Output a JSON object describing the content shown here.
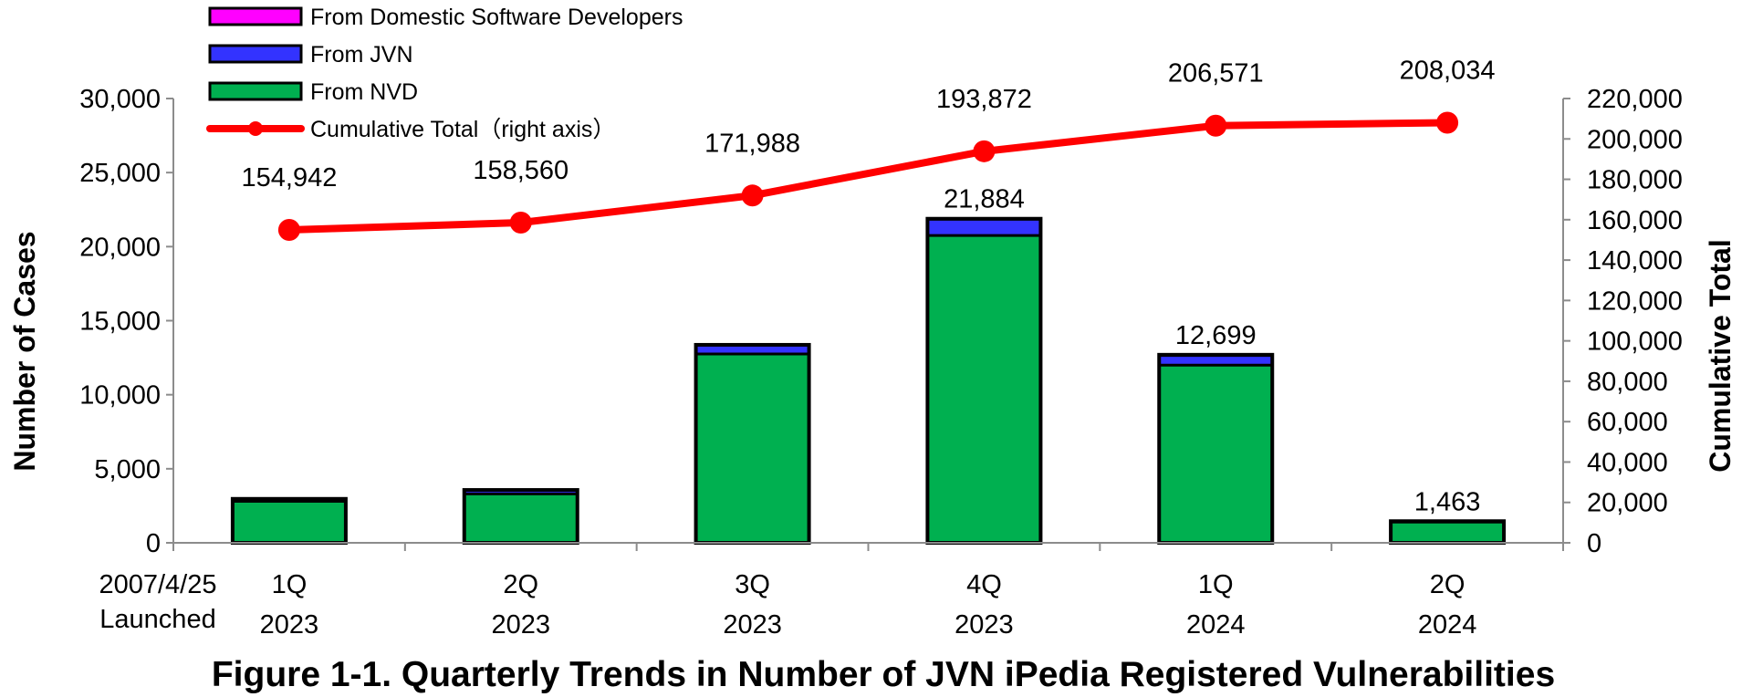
{
  "chart_data": {
    "type": "bar",
    "title": "Figure 1-1. Quarterly Trends in Number of JVN iPedia Registered Vulnerabilities",
    "ylabel": "Number of Cases",
    "y2label": "Cumulative Total",
    "ylim": [
      0,
      30000
    ],
    "y2lim": [
      0,
      220000
    ],
    "yticks": [
      "0",
      "5,000",
      "10,000",
      "15,000",
      "20,000",
      "25,000",
      "30,000"
    ],
    "y2ticks": [
      "0",
      "20,000",
      "40,000",
      "60,000",
      "80,000",
      "100,000",
      "120,000",
      "140,000",
      "160,000",
      "180,000",
      "200,000",
      "220,000"
    ],
    "launch_note": [
      "2007/4/25",
      "Launched"
    ],
    "categories": [
      {
        "quarter": "1Q",
        "year": "2023"
      },
      {
        "quarter": "2Q",
        "year": "2023"
      },
      {
        "quarter": "3Q",
        "year": "2023"
      },
      {
        "quarter": "4Q",
        "year": "2023"
      },
      {
        "quarter": "1Q",
        "year": "2024"
      },
      {
        "quarter": "2Q",
        "year": "2024"
      }
    ],
    "series": [
      {
        "name": "From NVD",
        "color": "#00b050",
        "values": [
          2800,
          3300,
          12750,
          20750,
          12000,
          1400
        ]
      },
      {
        "name": "From JVN",
        "color": "#3333ff",
        "values": [
          150,
          250,
          600,
          1100,
          650,
          50
        ]
      },
      {
        "name": "From Domestic Software Developers",
        "color": "#ff00ff",
        "values": [
          20,
          20,
          20,
          34,
          49,
          13
        ]
      }
    ],
    "bar_total_labels": [
      "",
      "",
      "",
      "21,884",
      "12,699",
      "1,463"
    ],
    "line_series": {
      "name": "Cumulative Total（right axis）",
      "color": "#ff0000",
      "axis": "right",
      "values": [
        154942,
        158560,
        171988,
        193872,
        206571,
        208034
      ],
      "labels": [
        "154,942",
        "158,560",
        "171,988",
        "193,872",
        "206,571",
        "208,034"
      ]
    },
    "legend": {
      "placement": "top-left",
      "entries": [
        "From Domestic Software Developers",
        "From JVN",
        "From NVD",
        "Cumulative Total（right axis）"
      ]
    },
    "grid": false
  }
}
